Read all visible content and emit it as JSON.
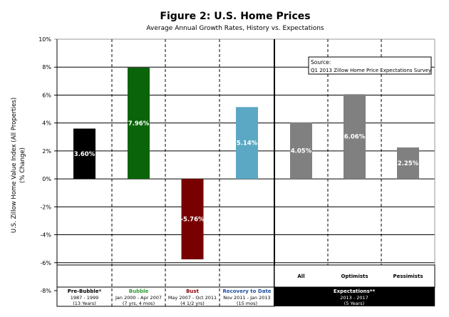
{
  "chart_data": {
    "type": "bar",
    "title": "Figure 2: U.S. Home Prices",
    "subtitle": "Average Annual Growth Rates, History vs. Expectations",
    "ylabel": "U.S. Zillow Home Value Index (All Properties)",
    "ylabel2": "(% Change)",
    "ylim": [
      -8,
      10
    ],
    "yticks": [
      "10%",
      "8%",
      "6%",
      "4%",
      "2%",
      "0%",
      "-2%",
      "-4%",
      "-6%",
      "-8%"
    ],
    "ytick_values": [
      10,
      8,
      6,
      4,
      2,
      0,
      -2,
      -4,
      -6,
      -8
    ],
    "grid": true,
    "bars": [
      {
        "value": 3.6,
        "label": "3.60%",
        "color": "#000000"
      },
      {
        "value": 7.96,
        "label": "7.96%",
        "color": "#0a640a"
      },
      {
        "value": -5.76,
        "label": "-5.76%",
        "color": "#780000"
      },
      {
        "value": 5.14,
        "label": "5.14%",
        "color": "#5ba8c4"
      },
      {
        "value": 4.05,
        "label": "4.05%",
        "color": "#808080"
      },
      {
        "value": 6.06,
        "label": "6.06%",
        "color": "#808080"
      },
      {
        "value": 2.25,
        "label": "2.25%",
        "color": "#808080"
      }
    ],
    "periods": [
      {
        "name": "Pre-Bubble*",
        "dates": "1987 - 1999",
        "duration": "(13 Years)",
        "color": "#000000"
      },
      {
        "name": "Bubble",
        "dates": "Jan 2000 - Apr 2007",
        "duration": "(7 yrs, 4 mos)",
        "color": "#2e9a2e"
      },
      {
        "name": "Bust",
        "dates": "May 2007 - Oct 2011",
        "duration": "(4 1/2 yrs)",
        "color": "#8b0000"
      },
      {
        "name": "Recovery to Date",
        "dates": "Nov 2011 - Jan 2013",
        "duration": "(15 mos)",
        "color": "#1f4fa0"
      }
    ],
    "expectations": {
      "name": "Expectations**",
      "dates": "2013 - 2017",
      "duration": "(5 Years)",
      "groups": [
        "All",
        "Optimists",
        "Pessimists"
      ]
    },
    "annotation": {
      "line1": "Source:",
      "line2": "Q1 2013 Zillow Home Price Expectations Survey"
    }
  }
}
